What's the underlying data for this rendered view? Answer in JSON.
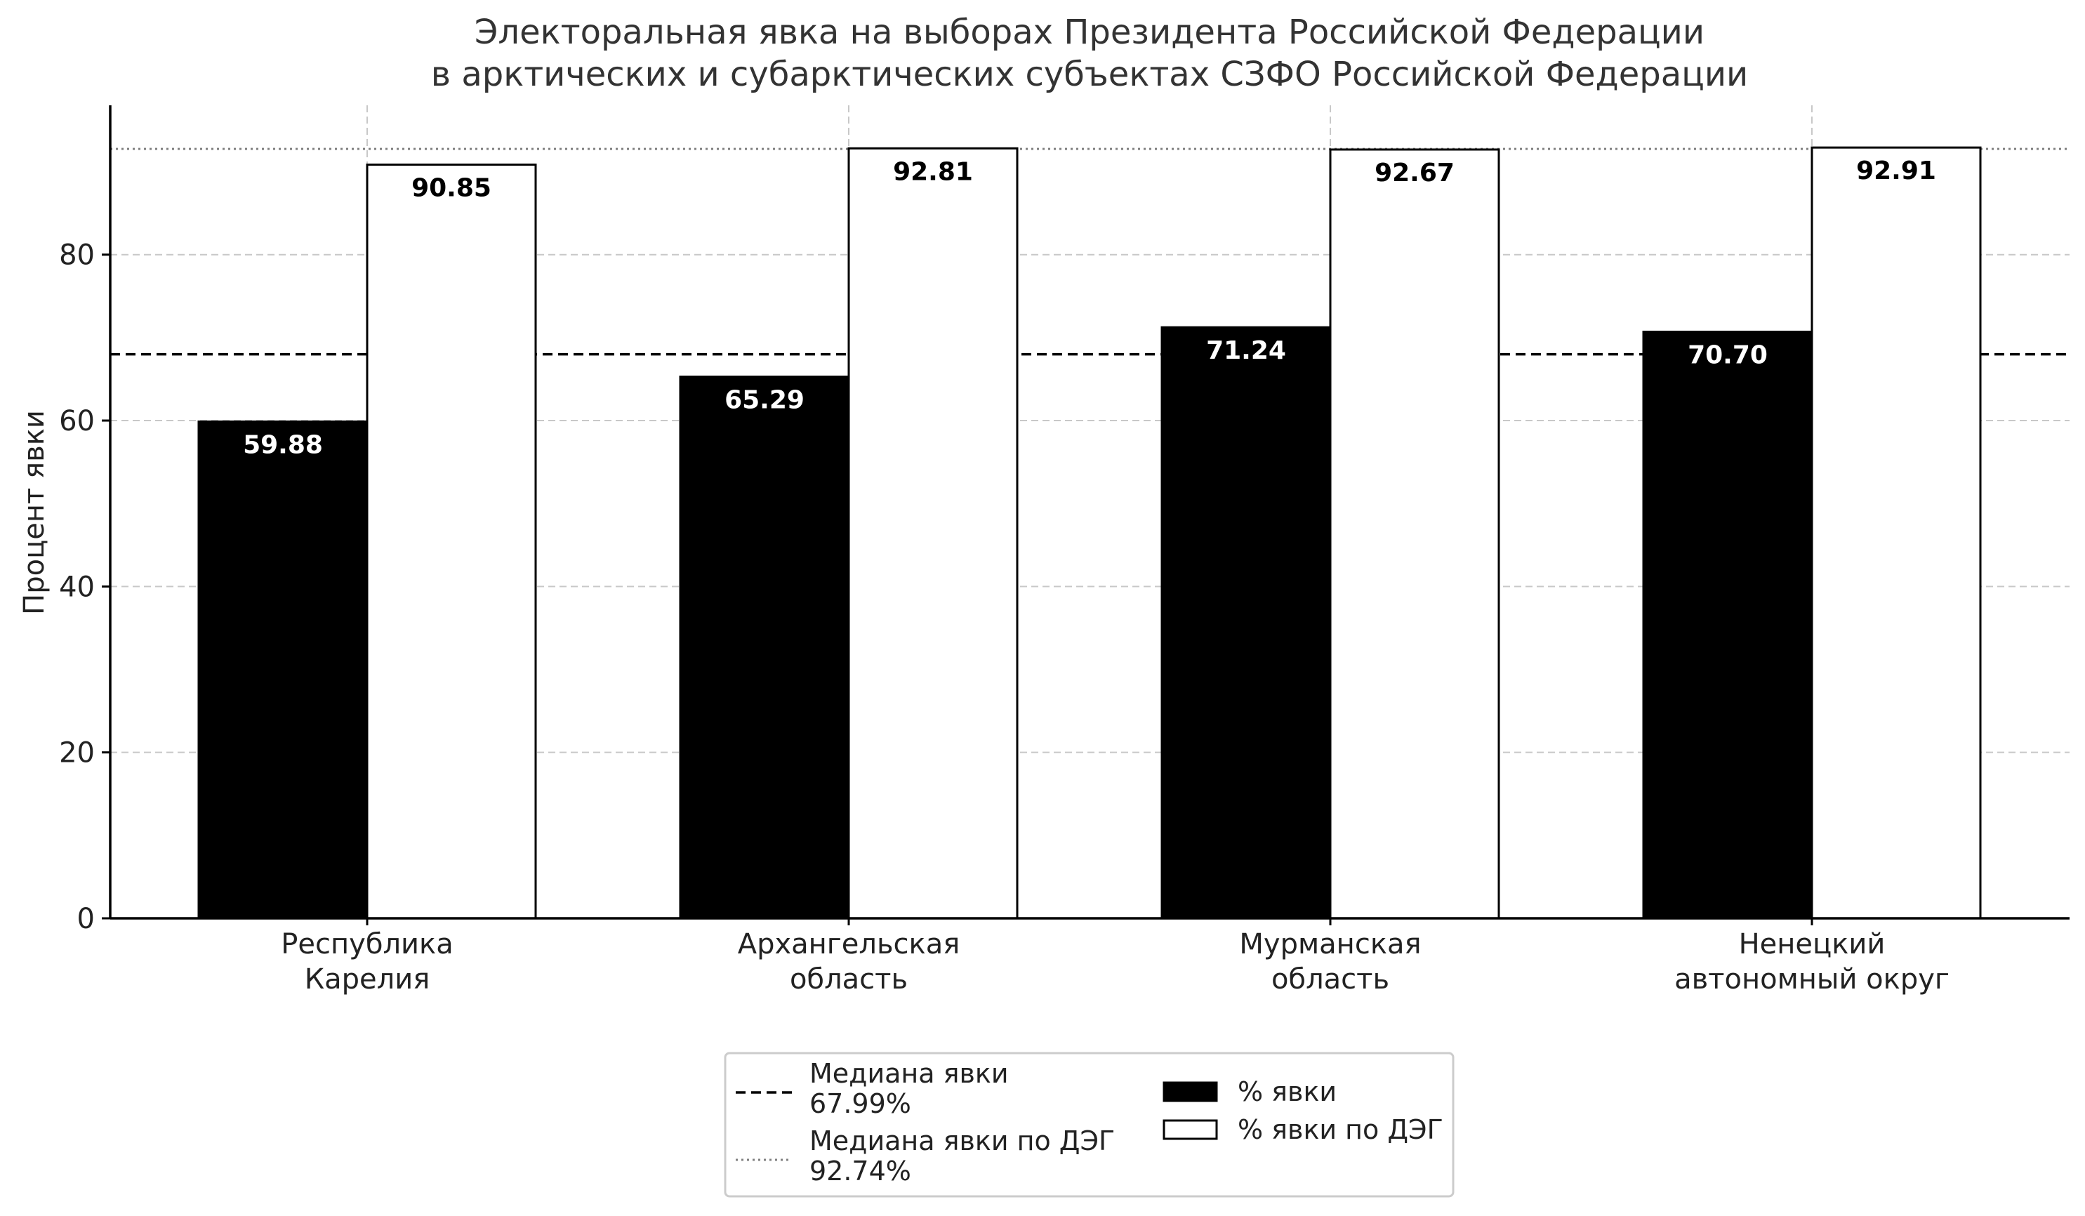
{
  "chart_data": {
    "type": "bar",
    "title": [
      "Электоральная явка на выборах Президента Российской Федерации",
      "в арктических и субарктических субъектах СЗФО Российской Федерации"
    ],
    "xlabel": "",
    "ylabel": "Процент явки",
    "ylim": [
      0,
      98
    ],
    "yticks": [
      "0",
      "20",
      "40",
      "60",
      "80"
    ],
    "grid": true,
    "legend_position": "bottom-center",
    "categories": [
      [
        "Республика",
        "Карелия"
      ],
      [
        "Архангельская",
        "область"
      ],
      [
        "Мурманская",
        "область"
      ],
      [
        "Ненецкий",
        "автономный округ"
      ]
    ],
    "series": [
      {
        "name": "% явки",
        "values": [
          59.88,
          65.29,
          71.24,
          70.7
        ],
        "labels": [
          "59.88",
          "65.29",
          "71.24",
          "70.70"
        ],
        "fill": "#000000",
        "label_color": "#ffffff"
      },
      {
        "name": "% явки по ДЭГ",
        "values": [
          90.85,
          92.81,
          92.67,
          92.91
        ],
        "labels": [
          "90.85",
          "92.81",
          "92.67",
          "92.91"
        ],
        "fill": "#ffffff",
        "label_color": "#000000"
      }
    ],
    "reference_lines": [
      {
        "name": "Медиана явки",
        "value": 67.99,
        "legend_text": [
          "Медиана явки",
          "67.99%"
        ],
        "style": "dashed",
        "color": "#000000"
      },
      {
        "name": "Медиана явки по ДЭГ",
        "value": 92.74,
        "legend_text": [
          "Медиана явки по ДЭГ",
          "92.74%"
        ],
        "style": "dotted",
        "color": "#808080"
      }
    ]
  }
}
